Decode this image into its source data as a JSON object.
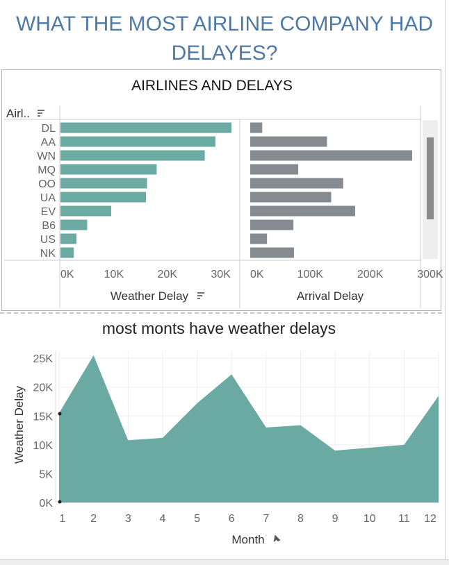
{
  "dashboard": {
    "title_line1": "WHAT THE MOST AIRLINE COMPANY HAD",
    "title_line2": "DELAYES?"
  },
  "airlines_panel": {
    "title": "AIRLINES AND DELAYS",
    "row_header": "Airl..",
    "sort_icon": "sort-descending-icon"
  },
  "line_panel": {
    "title": "most monts have weather delays",
    "pin_icon": "pin-icon"
  },
  "colors": {
    "weather": "#6aaaa2",
    "arrival": "#858b90",
    "title": "#4e79a7"
  },
  "chart_data": [
    {
      "type": "bar",
      "orientation": "horizontal",
      "categories": [
        "DL",
        "AA",
        "WN",
        "MQ",
        "OO",
        "UA",
        "EV",
        "B6",
        "US",
        "NK"
      ],
      "values": [
        32000,
        29000,
        27000,
        18000,
        16200,
        16000,
        9500,
        5000,
        3000,
        2500
      ],
      "xlabel": "Weather Delay",
      "xlim": [
        0,
        35000
      ],
      "ticks": [
        0,
        10000,
        20000,
        30000
      ],
      "tick_labels": [
        "0K",
        "10K",
        "20K",
        "30K"
      ]
    },
    {
      "type": "bar",
      "orientation": "horizontal",
      "categories": [
        "DL",
        "AA",
        "WN",
        "MQ",
        "OO",
        "UA",
        "EV",
        "B6",
        "US",
        "NK"
      ],
      "values": [
        20000,
        128000,
        270000,
        80000,
        155000,
        135000,
        175000,
        72000,
        28000,
        73000
      ],
      "xlabel": "Arrival Delay",
      "xlim": [
        0,
        320000
      ],
      "ticks": [
        0,
        100000,
        200000,
        300000
      ],
      "tick_labels": [
        "0K",
        "100K",
        "200K",
        "300K"
      ]
    },
    {
      "type": "area",
      "title": "most monts have weather delays",
      "x": [
        1,
        2,
        3,
        4,
        5,
        6,
        7,
        8,
        9,
        10,
        11,
        12
      ],
      "values": [
        15500,
        25500,
        10800,
        11200,
        17200,
        22200,
        13000,
        13400,
        9000,
        9500,
        10000,
        18500
      ],
      "xlabel": "Month",
      "ylabel": "Weather Delay",
      "ylim": [
        0,
        27000
      ],
      "yticks": [
        0,
        5000,
        10000,
        15000,
        20000,
        25000
      ],
      "ytick_labels": [
        "0K",
        "5K",
        "10K",
        "15K",
        "20K",
        "25K"
      ],
      "xtick_labels": [
        "1",
        "2",
        "3",
        "4",
        "5",
        "6",
        "7",
        "8",
        "9",
        "10",
        "11",
        "12"
      ]
    }
  ]
}
